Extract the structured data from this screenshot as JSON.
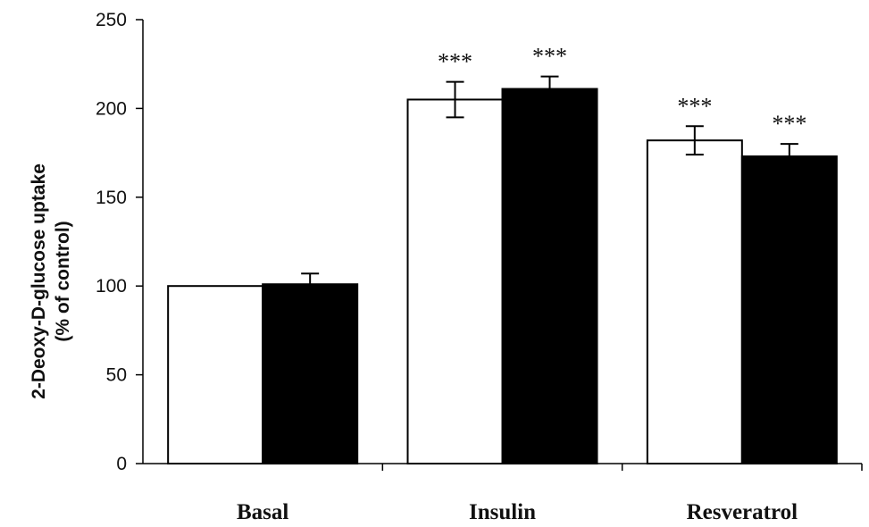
{
  "chart_data": {
    "type": "bar",
    "title": "",
    "xlabel": "",
    "ylabel_lines": [
      "2-Deoxy-D-glucose uptake",
      "(% of control)"
    ],
    "ylim": [
      0,
      250
    ],
    "yticks": [
      0,
      50,
      100,
      150,
      200,
      250
    ],
    "categories": [
      "Basal",
      "Insulin",
      "Resveratrol"
    ],
    "series": [
      {
        "color": "#ffffff",
        "values": [
          100,
          205,
          182
        ],
        "errors": [
          0,
          10,
          8
        ],
        "significance": [
          "",
          "***",
          "***"
        ]
      },
      {
        "color": "#000000",
        "values": [
          101,
          211,
          173
        ],
        "errors": [
          6,
          7,
          7
        ],
        "significance": [
          "",
          "***",
          "***"
        ]
      }
    ],
    "grid": false,
    "legend": "none"
  }
}
